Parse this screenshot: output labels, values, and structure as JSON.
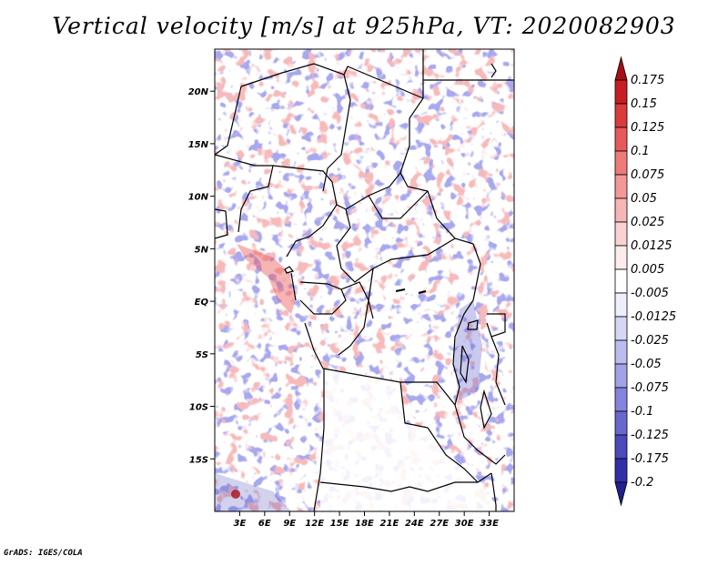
{
  "title": "Vertical velocity [m/s] at 925hPa, VT: 2020082903",
  "footer": "GrADS: IGES/COLA",
  "map": {
    "lon_range": [
      0,
      36
    ],
    "lat_range": [
      -20,
      24
    ],
    "lon_ticks": [
      {
        "value": 3,
        "label": "3E"
      },
      {
        "value": 6,
        "label": "6E"
      },
      {
        "value": 9,
        "label": "9E"
      },
      {
        "value": 12,
        "label": "12E"
      },
      {
        "value": 15,
        "label": "15E"
      },
      {
        "value": 18,
        "label": "18E"
      },
      {
        "value": 21,
        "label": "21E"
      },
      {
        "value": 24,
        "label": "24E"
      },
      {
        "value": 27,
        "label": "27E"
      },
      {
        "value": 30,
        "label": "30E"
      },
      {
        "value": 33,
        "label": "33E"
      }
    ],
    "lat_ticks": [
      {
        "value": 20,
        "label": "20N"
      },
      {
        "value": 15,
        "label": "15N"
      },
      {
        "value": 10,
        "label": "10N"
      },
      {
        "value": 5,
        "label": "5N"
      },
      {
        "value": 0,
        "label": "EQ"
      },
      {
        "value": -5,
        "label": "5S"
      },
      {
        "value": -10,
        "label": "10S"
      },
      {
        "value": -15,
        "label": "15S"
      }
    ]
  },
  "colorbar": {
    "levels": [
      "0.175",
      "0.15",
      "0.125",
      "0.1",
      "0.075",
      "0.05",
      "0.025",
      "0.0125",
      "0.005",
      "-0.005",
      "-0.0125",
      "-0.025",
      "-0.05",
      "-0.075",
      "-0.1",
      "-0.125",
      "-0.175",
      "-0.2"
    ],
    "colors": [
      "#a50f15",
      "#c81d25",
      "#dc3b3b",
      "#e85a5a",
      "#ee7a7a",
      "#f29898",
      "#f6b6b6",
      "#fad2d2",
      "#fdecec",
      "#ffffff",
      "#eeeefc",
      "#d6d6f6",
      "#bcbcf0",
      "#a2a2e8",
      "#8484dc",
      "#6868cf",
      "#4a4abd",
      "#3030a8",
      "#20208f"
    ]
  }
}
